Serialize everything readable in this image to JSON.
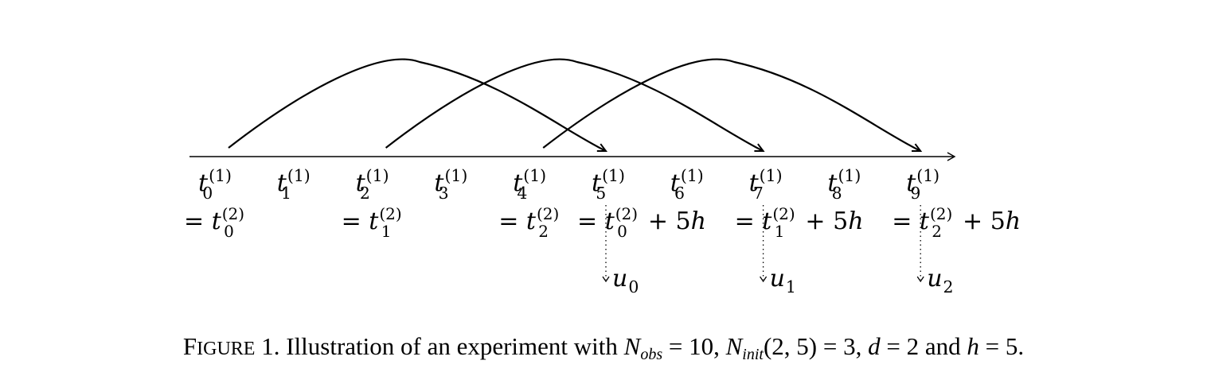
{
  "diagram": {
    "time_labels": [
      {
        "base": "t",
        "sub": "0",
        "sup": "(1)"
      },
      {
        "base": "t",
        "sub": "1",
        "sup": "(1)"
      },
      {
        "base": "t",
        "sub": "2",
        "sup": "(1)"
      },
      {
        "base": "t",
        "sub": "3",
        "sup": "(1)"
      },
      {
        "base": "t",
        "sub": "4",
        "sup": "(1)"
      },
      {
        "base": "t",
        "sub": "5",
        "sup": "(1)"
      },
      {
        "base": "t",
        "sub": "6",
        "sup": "(1)"
      },
      {
        "base": "t",
        "sub": "7",
        "sup": "(1)"
      },
      {
        "base": "t",
        "sub": "8",
        "sup": "(1)"
      },
      {
        "base": "t",
        "sub": "9",
        "sup": "(1)"
      }
    ],
    "equalities": [
      {
        "prefix": "=",
        "base": "t",
        "sub": "0",
        "sup": "(2)",
        "suffix": ""
      },
      {
        "prefix": "=",
        "base": "t",
        "sub": "1",
        "sup": "(2)",
        "suffix": ""
      },
      {
        "prefix": "=",
        "base": "t",
        "sub": "2",
        "sup": "(2)",
        "suffix": ""
      },
      {
        "prefix": "=",
        "base": "t",
        "sub": "0",
        "sup": "(2)",
        "suffix": "+ 5h"
      },
      {
        "prefix": "=",
        "base": "t",
        "sub": "1",
        "sup": "(2)",
        "suffix": "+ 5h"
      },
      {
        "prefix": "=",
        "base": "t",
        "sub": "2",
        "sup": "(2)",
        "suffix": "+ 5h"
      }
    ],
    "outputs": [
      {
        "base": "u",
        "sub": "0"
      },
      {
        "base": "u",
        "sub": "1"
      },
      {
        "base": "u",
        "sub": "2"
      }
    ],
    "arcs": [
      {
        "from": 0,
        "to": 5
      },
      {
        "from": 2,
        "to": 7
      },
      {
        "from": 4,
        "to": 9
      }
    ]
  },
  "caption": {
    "label_first": "F",
    "label_rest": "IGURE",
    "label_number": "1.",
    "text_1": "Illustration of an experiment with",
    "n_obs_base": "N",
    "n_obs_sub": "obs",
    "n_obs_value": "= 10,",
    "n_init_base": "N",
    "n_init_sub": "init",
    "n_init_value": "(2, 5) = 3,",
    "d_symbol": "d",
    "d_value": "= 2",
    "and_text": "and",
    "h_symbol": "h",
    "h_value": "= 5."
  }
}
